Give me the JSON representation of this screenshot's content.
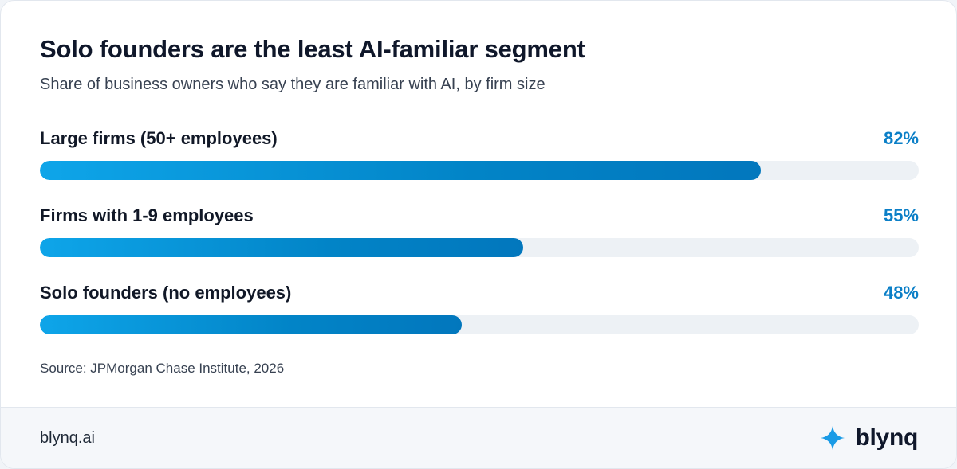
{
  "chart_data": {
    "type": "bar",
    "orientation": "horizontal",
    "title": "Solo founders are the least AI-familiar segment",
    "subtitle": "Share of business owners who say they are familiar with AI, by firm size",
    "categories": [
      "Large firms (50+ employees)",
      "Firms with 1-9 employees",
      "Solo founders (no employees)"
    ],
    "values": [
      82,
      55,
      48
    ],
    "value_labels": [
      "82%",
      "55%",
      "48%"
    ],
    "xlim": [
      0,
      100
    ],
    "unit": "%",
    "grid": false,
    "legend": "none",
    "source": "Source: JPMorgan Chase Institute, 2026"
  },
  "footer": {
    "url": "blynq.ai",
    "brand_name": "blynq",
    "brand_icon": "sparkle-icon"
  },
  "colors": {
    "bar_fill": "#0284c7",
    "bar_fill_light": "#0ea5e9",
    "bar_track": "#edf1f5",
    "value_text": "#0b7fc7",
    "brand_icon": "#1a9be6"
  }
}
